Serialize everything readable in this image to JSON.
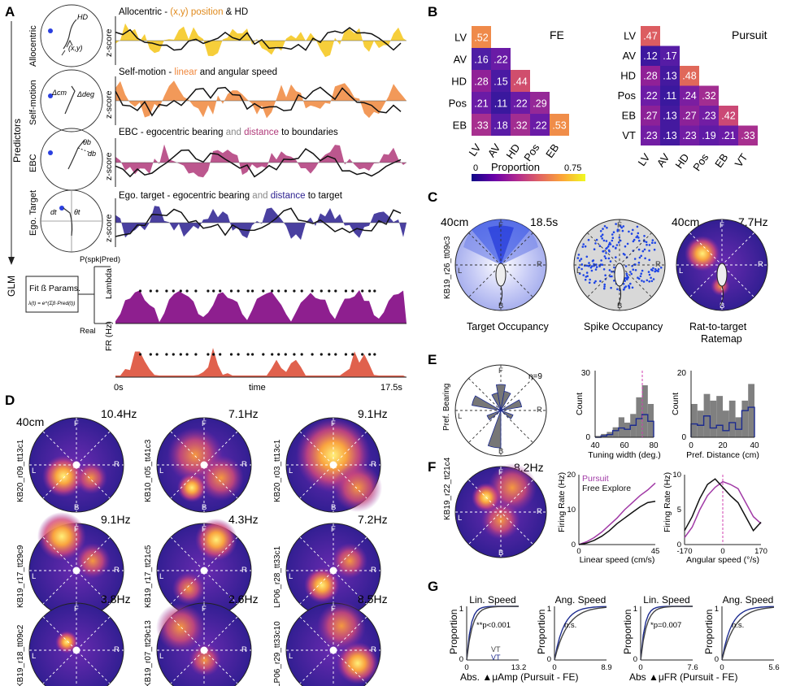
{
  "panels": {
    "A": {
      "letter": "A",
      "predictors_label": "Predictors",
      "glm_label": "GLM",
      "row_labels": [
        "Allocentric",
        "Self-motion",
        "EBC",
        "Ego. Target"
      ],
      "icon_labels": {
        "hd": "HD",
        "xy": "(x,y)",
        "dcm": "Δcm",
        "ddeg": "Δdeg",
        "thb": "θb",
        "db": "db",
        "dt": "dt",
        "tht": "θt"
      },
      "titles": [
        {
          "a": "Allocentric - ",
          "b": "(x,y) position",
          "c": " & HD"
        },
        {
          "a": "Self-motion - ",
          "b": "linear",
          "c": " and angular speed"
        },
        {
          "a": "EBC - egocentric bearing ",
          "b": "and",
          "c": " ",
          "d": "distance",
          "e": " to boundaries"
        },
        {
          "a": "Ego. target - egocentric bearing ",
          "b": "and",
          "c": " ",
          "d": "distance",
          "e": " to target"
        }
      ],
      "zscore": "z-score",
      "glm_box": {
        "title": "Fit ß Params.",
        "formula": "λ(t) = e^(Σβ·Pred(t))"
      },
      "pspk": "P(spk|Pred)",
      "real": "Real",
      "lambda": "Lambda",
      "fr": "FR (Hz)",
      "time_start": "0s",
      "time_mid": "time",
      "time_end": "17.5s",
      "colors": {
        "allo": "#f5c518",
        "self": "#f0873c",
        "ebc": "#b03a7a",
        "ego": "#2a1f8f",
        "lambda": "#8e1f8f",
        "fr": "#e0614d"
      }
    },
    "B": {
      "letter": "B",
      "fe": {
        "title": "FE",
        "rows": [
          "LV",
          "AV",
          "HD",
          "Pos",
          "EB"
        ],
        "cols": [
          "LV",
          "AV",
          "HD",
          "Pos",
          "EB"
        ],
        "values": [
          [
            ".52"
          ],
          [
            ".16",
            ".22"
          ],
          [
            ".28",
            ".15",
            ".44"
          ],
          [
            ".21",
            ".11",
            ".22",
            ".29"
          ],
          [
            ".33",
            ".18",
            ".32",
            ".22",
            ".53"
          ]
        ],
        "colors": [
          [
            "#ef8a4a"
          ],
          [
            "#4e1ea5",
            "#6a1ba6"
          ],
          [
            "#902097",
            "#4a1aa3",
            "#d04e6d"
          ],
          [
            "#6a1ba6",
            "#3a189e",
            "#6a1ba6",
            "#952897"
          ],
          [
            "#a72f8f",
            "#5a1ba6",
            "#a22d91",
            "#6a1ba6",
            "#f08d49"
          ]
        ]
      },
      "pursuit": {
        "title": "Pursuit",
        "rows": [
          "LV",
          "AV",
          "HD",
          "Pos",
          "EB",
          "VT"
        ],
        "cols": [
          "LV",
          "AV",
          "HD",
          "Pos",
          "EB",
          "VT"
        ],
        "values": [
          [
            ".47"
          ],
          [
            ".12",
            ".17"
          ],
          [
            ".28",
            ".13",
            ".48"
          ],
          [
            ".22",
            ".11",
            ".24",
            ".32"
          ],
          [
            ".27",
            ".13",
            ".27",
            ".23",
            ".42"
          ],
          [
            ".23",
            ".13",
            ".23",
            ".19",
            ".21",
            ".33"
          ]
        ],
        "colors": [
          [
            "#dc5d61"
          ],
          [
            "#3d189f",
            "#561ca5"
          ],
          [
            "#902097",
            "#44199f",
            "#e0685a"
          ],
          [
            "#6d1ca6",
            "#3a189e",
            "#7b1ea1",
            "#a22d91"
          ],
          [
            "#8c2198",
            "#44199f",
            "#8c2198",
            "#721da4",
            "#cb4875"
          ],
          [
            "#721da4",
            "#44199f",
            "#721da4",
            "#5f1ba6",
            "#6a1ba6",
            "#a72f8f"
          ]
        ]
      },
      "colorbar": {
        "min": "0",
        "label": "Proportion",
        "max": "0.75",
        "stops": [
          "#0d0887",
          "#6a00a8",
          "#b12a90",
          "#e16462",
          "#fca636",
          "#f0f921"
        ]
      }
    },
    "C": {
      "letter": "C",
      "scale": "40cm",
      "time": "18.5s",
      "rate": "7.7Hz",
      "cell_id": "KB19_r26_tt09c3",
      "labels": [
        "Target Occupancy",
        "Spike Occupancy",
        "Rat-to-target",
        "Ratemap"
      ],
      "compass": {
        "f": "F",
        "r": "R",
        "b": "B",
        "l": "L"
      }
    },
    "D": {
      "letter": "D",
      "scale": "40cm",
      "maps": [
        {
          "id": "KB20_r09_tt13c1",
          "rate": "10.4Hz"
        },
        {
          "id": "KB10_r05_tt41c3",
          "rate": "7.1Hz"
        },
        {
          "id": "KB20_r03_tt13c1",
          "rate": "9.1Hz"
        },
        {
          "id": "KB19_r17_tt29c9",
          "rate": "9.1Hz"
        },
        {
          "id": "KB19_r17_tt21c5",
          "rate": "4.3Hz"
        },
        {
          "id": "LP06_r28_tt33c1",
          "rate": "7.2Hz"
        },
        {
          "id": "KB19_r18_tt09c2",
          "rate": "3.8Hz"
        },
        {
          "id": "KB19_r07_tt29c13",
          "rate": "2.6Hz"
        },
        {
          "id": "LP06_r29_tt33c10",
          "rate": "8.5Hz"
        }
      ]
    },
    "E": {
      "letter": "E",
      "rose": {
        "ylabel": "Pref. Bearing",
        "n": "n=9"
      },
      "hist1": {
        "ylabel": "Count",
        "xlabel": "Tuning width (deg.)",
        "yticks": [
          "0",
          "30"
        ],
        "xticks": [
          "40",
          "60",
          "80"
        ]
      },
      "hist2": {
        "ylabel": "Count",
        "xlabel": "Pref. Distance (cm)",
        "yticks": [
          "0",
          "20"
        ],
        "xticks": [
          "0",
          "20",
          "40"
        ]
      }
    },
    "F": {
      "letter": "F",
      "rate": "8.2Hz",
      "cell_id": "KB19_r22_tt21c4",
      "lin": {
        "ylabel": "Firing Rate (Hz)",
        "xlabel": "Linear speed (cm/s)",
        "yticks": [
          "0",
          "10",
          "20"
        ],
        "xticks": [
          "0",
          "45"
        ],
        "legend_pursuit": "Pursuit",
        "legend_fe": "Free Explore"
      },
      "ang": {
        "ylabel": "Firing Rate (Hz)",
        "xlabel": "Angular speed (°/s)",
        "yticks": [
          "0",
          "5",
          "10"
        ],
        "xticks": [
          "-170",
          "0",
          "170"
        ]
      },
      "colors": {
        "pursuit": "#a13aa6",
        "fe": "#111111"
      }
    },
    "G": {
      "letter": "G",
      "plots": [
        {
          "title": "Lin. Speed",
          "stat": "**p<0.001",
          "xmax": "13.2"
        },
        {
          "title": "Ang. Speed",
          "stat": "n.s.",
          "xmax": "8.9"
        },
        {
          "title": "Lin. Speed",
          "stat": "*p=0.007",
          "xmax": "7.6"
        },
        {
          "title": "Ang. Speed",
          "stat": "n.s.",
          "xmax": "5.6"
        }
      ],
      "ylabel": "Proportion",
      "yticks": [
        "0",
        "1"
      ],
      "xmin": "0",
      "legend_a": "VT",
      "legend_b": "VT",
      "xlabel_left": "Abs. ▲μAmp (Pursuit - FE)",
      "xlabel_right": "Abs ▲μFR (Pursuit - FE)",
      "colors": {
        "a": "#1c2b8f",
        "b": "#444444"
      }
    }
  }
}
